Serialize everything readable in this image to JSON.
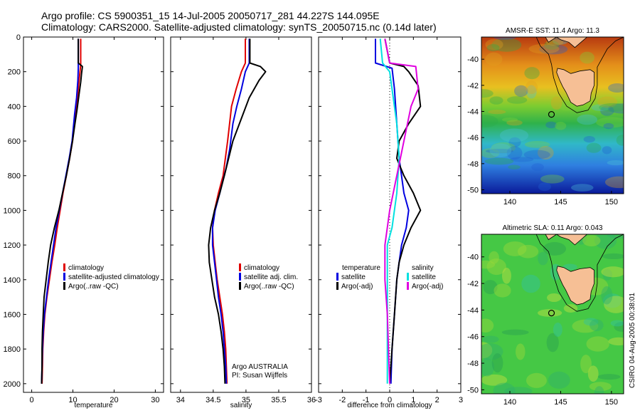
{
  "header": {
    "line1": "Argo profile: CS 5900351_15 14-Jul-2005 20050717_281 44.227S 144.095E",
    "line2": "Climatology: CARS2000. Satellite-adjusted climatology: synTS_20050715.nc (0.14d later)"
  },
  "credit": "CSIRO 04-Aug-2005 00:38:01",
  "chart_data": [
    {
      "type": "line",
      "xlabel": "temperature",
      "ylabel": "",
      "xlim": [
        -2,
        32
      ],
      "ylim": [
        2050,
        0
      ],
      "xticks": [
        0,
        10,
        20,
        30
      ],
      "yticks": [
        0,
        200,
        400,
        600,
        800,
        1000,
        1200,
        1400,
        1600,
        1800,
        2000
      ],
      "legend": {
        "placement": "center-right",
        "entries": [
          {
            "label": "climatology",
            "color": "#e00000"
          },
          {
            "label": "satellite-adjusted climatology",
            "color": "#0000e0"
          },
          {
            "label": "Argo(..raw -QC)",
            "color": "#000000"
          }
        ]
      },
      "series": [
        {
          "name": "climatology",
          "color": "#e00000",
          "points": [
            [
              11.9,
              10
            ],
            [
              11.9,
              100
            ],
            [
              11.9,
              160
            ],
            [
              11.8,
              180
            ],
            [
              11.5,
              250
            ],
            [
              11.1,
              350
            ],
            [
              10.6,
              450
            ],
            [
              9.9,
              600
            ],
            [
              9.2,
              700
            ],
            [
              8.4,
              800
            ],
            [
              7.6,
              900
            ],
            [
              6.9,
              1000
            ],
            [
              6.2,
              1100
            ],
            [
              5.6,
              1200
            ],
            [
              4.9,
              1300
            ],
            [
              4.3,
              1400
            ],
            [
              3.7,
              1500
            ],
            [
              3.2,
              1600
            ],
            [
              2.9,
              1700
            ],
            [
              2.7,
              1800
            ],
            [
              2.6,
              1900
            ],
            [
              2.5,
              2000
            ]
          ]
        },
        {
          "name": "satellite-adjusted climatology",
          "color": "#0000e0",
          "points": [
            [
              11.3,
              10
            ],
            [
              11.3,
              100
            ],
            [
              11.3,
              160
            ],
            [
              11.3,
              180
            ],
            [
              11.2,
              250
            ],
            [
              10.9,
              350
            ],
            [
              10.4,
              450
            ],
            [
              9.8,
              600
            ],
            [
              9.1,
              700
            ],
            [
              8.3,
              800
            ],
            [
              7.5,
              900
            ],
            [
              6.7,
              1000
            ],
            [
              5.9,
              1100
            ],
            [
              5.3,
              1200
            ],
            [
              4.7,
              1300
            ],
            [
              4.1,
              1400
            ],
            [
              3.6,
              1500
            ],
            [
              3.1,
              1600
            ],
            [
              2.8,
              1700
            ],
            [
              2.6,
              1800
            ],
            [
              2.5,
              1900
            ],
            [
              2.4,
              2000
            ]
          ]
        },
        {
          "name": "Argo(..raw -QC)",
          "color": "#000000",
          "points": [
            [
              11.3,
              10
            ],
            [
              11.3,
              150
            ],
            [
              12.3,
              170
            ],
            [
              12.1,
              210
            ],
            [
              11.9,
              260
            ],
            [
              11.5,
              330
            ],
            [
              11.0,
              420
            ],
            [
              10.5,
              500
            ],
            [
              9.9,
              600
            ],
            [
              9.2,
              700
            ],
            [
              8.4,
              800
            ],
            [
              7.5,
              900
            ],
            [
              6.6,
              1000
            ],
            [
              5.5,
              1100
            ],
            [
              4.6,
              1200
            ],
            [
              4.0,
              1300
            ],
            [
              3.5,
              1400
            ],
            [
              3.0,
              1500
            ],
            [
              2.8,
              1600
            ],
            [
              2.6,
              1700
            ],
            [
              2.5,
              1800
            ],
            [
              2.5,
              1900
            ],
            [
              2.4,
              2000
            ]
          ]
        }
      ]
    },
    {
      "type": "line",
      "xlabel": "salinity",
      "ylabel": "",
      "xlim": [
        33.85,
        36
      ],
      "ylim": [
        2050,
        0
      ],
      "xticks": [
        34,
        34.5,
        35,
        35.5,
        36
      ],
      "legend": {
        "placement": "center-right",
        "entries": [
          {
            "label": "climatology",
            "color": "#e00000"
          },
          {
            "label": "satellite adj. clim.",
            "color": "#0000e0"
          },
          {
            "label": "Argo(..raw -QC)",
            "color": "#000000"
          }
        ]
      },
      "annotations": [
        "Argo AUSTRALIA",
        "PI: Susan Wijffels"
      ],
      "series": [
        {
          "name": "climatology",
          "color": "#e00000",
          "points": [
            [
              34.99,
              10
            ],
            [
              34.99,
              150
            ],
            [
              34.93,
              200
            ],
            [
              34.85,
              300
            ],
            [
              34.78,
              400
            ],
            [
              34.72,
              600
            ],
            [
              34.65,
              800
            ],
            [
              34.58,
              900
            ],
            [
              34.52,
              1000
            ],
            [
              34.49,
              1100
            ],
            [
              34.5,
              1200
            ],
            [
              34.53,
              1300
            ],
            [
              34.56,
              1400
            ],
            [
              34.6,
              1500
            ],
            [
              34.64,
              1600
            ],
            [
              34.67,
              1700
            ],
            [
              34.69,
              1800
            ],
            [
              34.7,
              1900
            ],
            [
              34.71,
              2000
            ]
          ]
        },
        {
          "name": "satellite adj. clim.",
          "color": "#0000e0",
          "points": [
            [
              35.05,
              10
            ],
            [
              35.05,
              150
            ],
            [
              34.99,
              200
            ],
            [
              34.93,
              300
            ],
            [
              34.86,
              400
            ],
            [
              34.8,
              500
            ],
            [
              34.75,
              650
            ],
            [
              34.7,
              750
            ],
            [
              34.6,
              900
            ],
            [
              34.53,
              1000
            ],
            [
              34.49,
              1100
            ],
            [
              34.49,
              1200
            ],
            [
              34.52,
              1300
            ],
            [
              34.55,
              1400
            ],
            [
              34.58,
              1500
            ],
            [
              34.62,
              1600
            ],
            [
              34.65,
              1700
            ],
            [
              34.67,
              1800
            ],
            [
              34.69,
              1900
            ],
            [
              34.7,
              2000
            ]
          ]
        },
        {
          "name": "Argo(..raw -QC)",
          "color": "#000000",
          "points": [
            [
              35.06,
              10
            ],
            [
              35.06,
              150
            ],
            [
              35.22,
              170
            ],
            [
              35.3,
              200
            ],
            [
              35.2,
              250
            ],
            [
              35.05,
              350
            ],
            [
              34.95,
              450
            ],
            [
              34.8,
              600
            ],
            [
              34.67,
              800
            ],
            [
              34.6,
              900
            ],
            [
              34.52,
              1000
            ],
            [
              34.46,
              1100
            ],
            [
              34.43,
              1200
            ],
            [
              34.44,
              1300
            ],
            [
              34.48,
              1400
            ],
            [
              34.52,
              1500
            ],
            [
              34.58,
              1600
            ],
            [
              34.62,
              1700
            ],
            [
              34.65,
              1800
            ],
            [
              34.67,
              1900
            ],
            [
              34.68,
              2000
            ]
          ]
        }
      ]
    },
    {
      "type": "line",
      "xlabel": "difference from climatology",
      "ylabel": "",
      "xlim": [
        -3,
        3
      ],
      "ylim": [
        2050,
        0
      ],
      "xticks": [
        -3,
        -2,
        -1,
        0,
        1,
        2,
        3
      ],
      "legend": {
        "placement": "center",
        "entries": [
          {
            "label": "temperature",
            "color": "#000000"
          },
          {
            "label": "satellite",
            "color": "#0000e0"
          },
          {
            "label": "Argo(-adj)",
            "color": "#000000"
          },
          {
            "label": "salinity",
            "color": "#000000"
          },
          {
            "label": "satellite",
            "color": "#00e0e0"
          },
          {
            "label": "Argo(-adj)",
            "color": "#e000e0"
          }
        ]
      },
      "series": [
        {
          "name": "temperature satellite",
          "color": "#0000e0",
          "points": [
            [
              -0.6,
              10
            ],
            [
              -0.6,
              150
            ],
            [
              0.1,
              180
            ],
            [
              0.2,
              300
            ],
            [
              0.3,
              500
            ],
            [
              0.4,
              700
            ],
            [
              0.6,
              900
            ],
            [
              0.8,
              1000
            ],
            [
              0.7,
              1100
            ],
            [
              0.5,
              1200
            ],
            [
              0.4,
              1300
            ],
            [
              0.3,
              1400
            ],
            [
              0.2,
              1600
            ],
            [
              0.1,
              1800
            ],
            [
              0.05,
              2000
            ]
          ]
        },
        {
          "name": "temperature Argo(-adj)",
          "color": "#000000",
          "points": [
            [
              -0.2,
              10
            ],
            [
              0.0,
              150
            ],
            [
              0.6,
              170
            ],
            [
              0.8,
              200
            ],
            [
              1.2,
              280
            ],
            [
              1.3,
              400
            ],
            [
              0.8,
              500
            ],
            [
              0.4,
              600
            ],
            [
              0.3,
              700
            ],
            [
              0.6,
              800
            ],
            [
              1.0,
              900
            ],
            [
              1.3,
              1000
            ],
            [
              0.9,
              1100
            ],
            [
              0.6,
              1200
            ],
            [
              0.4,
              1300
            ],
            [
              0.3,
              1400
            ],
            [
              0.2,
              1600
            ],
            [
              0.1,
              1800
            ],
            [
              0.0,
              2000
            ]
          ]
        },
        {
          "name": "salinity satellite",
          "color": "#00e0e0",
          "points": [
            [
              -0.4,
              10
            ],
            [
              -0.3,
              150
            ],
            [
              0.0,
              200
            ],
            [
              0.1,
              300
            ],
            [
              0.3,
              500
            ],
            [
              0.4,
              700
            ],
            [
              0.3,
              900
            ],
            [
              0.1,
              1100
            ],
            [
              -0.1,
              1200
            ],
            [
              -0.1,
              1400
            ],
            [
              -0.1,
              1600
            ],
            [
              -0.1,
              1800
            ],
            [
              -0.1,
              2000
            ]
          ]
        },
        {
          "name": "salinity Argo(-adj)",
          "color": "#e000e0",
          "points": [
            [
              -0.2,
              10
            ],
            [
              0.0,
              150
            ],
            [
              1.1,
              170
            ],
            [
              1.2,
              300
            ],
            [
              0.9,
              400
            ],
            [
              0.6,
              600
            ],
            [
              0.3,
              800
            ],
            [
              0.0,
              1000
            ],
            [
              -0.2,
              1200
            ],
            [
              -0.2,
              1400
            ],
            [
              -0.1,
              1600
            ],
            [
              -0.05,
              1800
            ],
            [
              0.0,
              2000
            ]
          ]
        }
      ]
    }
  ],
  "maps": [
    {
      "title": "AMSR-E SST: 11.4 Argo: 11.3",
      "xticks": [
        140,
        145,
        150
      ],
      "yticks": [
        -40,
        -42,
        -44,
        -46,
        -48,
        -50
      ],
      "xlim": [
        137.2,
        151.2
      ],
      "ylim": [
        -50.3,
        -38.3
      ],
      "float_location": [
        144.095,
        -44.227
      ]
    },
    {
      "title": "Altimetric SLA: 0.11 Argo: 0.043",
      "xticks": [
        140,
        145,
        150
      ],
      "yticks": [
        -40,
        -42,
        -44,
        -46,
        -48,
        -50
      ],
      "xlim": [
        137.2,
        151.2
      ],
      "ylim": [
        -50.3,
        -38.3
      ],
      "float_location": [
        144.095,
        -44.227
      ]
    }
  ]
}
